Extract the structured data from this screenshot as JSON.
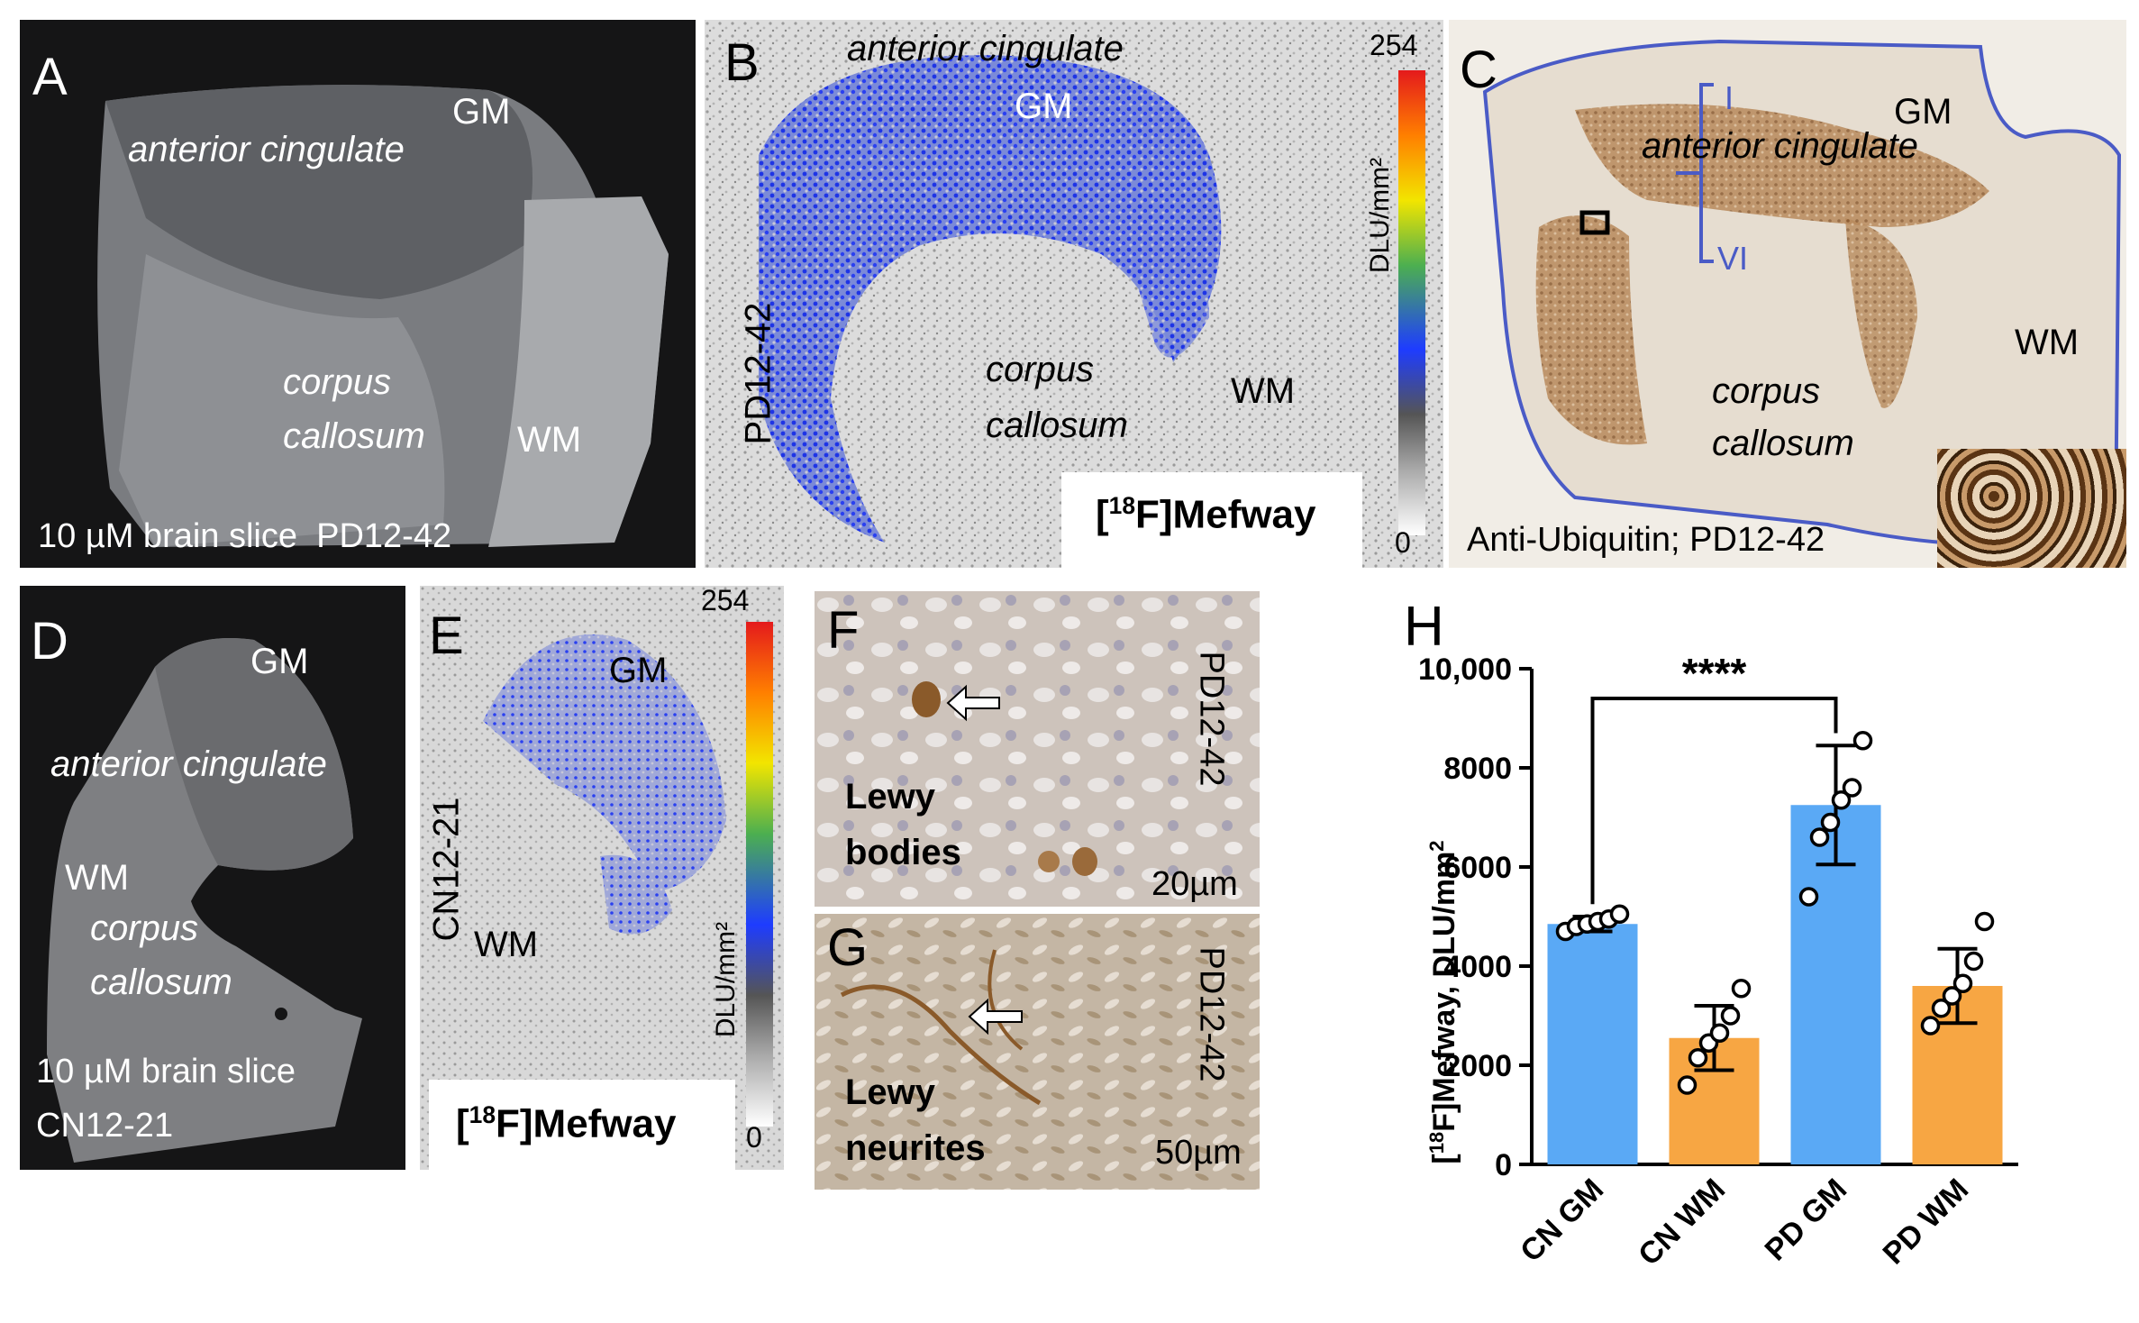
{
  "panels": {
    "A": {
      "label": "A",
      "gm": "GM",
      "region": "anterior cingulate",
      "cc_line1": "corpus",
      "cc_line2": "callosum",
      "wm": "WM",
      "caption": "10 µM brain slice  PD12-42"
    },
    "B": {
      "label": "B",
      "region": "anterior cingulate",
      "gm": "GM",
      "cc_line1": "corpus",
      "cc_line2": "callosum",
      "wm": "WM",
      "sample": "PD12-42",
      "cbar_max": "254",
      "cbar_min": "0",
      "cbar_unit": "DLU/mm²",
      "tracer_iso": "18",
      "tracer_name": "Mefway"
    },
    "C": {
      "label": "C",
      "layer_top": "I",
      "layer_bottom": "VI",
      "gm": "GM",
      "region": "anterior cingulate",
      "cc_line1": "corpus",
      "cc_line2": "callosum",
      "wm": "WM",
      "caption": "Anti-Ubiquitin; PD12-42"
    },
    "D": {
      "label": "D",
      "gm": "GM",
      "region": "anterior cingulate",
      "wm": "WM",
      "cc_line1": "corpus",
      "cc_line2": "callosum",
      "caption_line1": "10 µM brain slice",
      "caption_line2": "CN12-21"
    },
    "E": {
      "label": "E",
      "gm": "GM",
      "wm": "WM",
      "sample": "CN12-21",
      "cbar_max": "254",
      "cbar_min": "0",
      "cbar_unit": "DLU/mm²",
      "tracer_iso": "18",
      "tracer_name": "Mefway"
    },
    "F": {
      "label": "F",
      "line1": "Lewy",
      "line2": "bodies",
      "sample": "PD12-42",
      "scale": "20µm"
    },
    "G": {
      "label": "G",
      "line1": "Lewy",
      "line2": "neurites",
      "sample": "PD12-42",
      "scale": "50µm"
    },
    "H": {
      "label": "H",
      "significance": "****"
    }
  },
  "chart_data": {
    "type": "bar",
    "ylabel_prefix": "[",
    "ylabel_iso": "18",
    "ylabel_rest": "F]Mefway, DLU/mm",
    "ylabel_exp": "2",
    "ylim": [
      0,
      10000
    ],
    "yticks": [
      0,
      2000,
      4000,
      6000,
      8000,
      10000
    ],
    "ytick_labels": [
      "0",
      "2000",
      "4000",
      "6000",
      "8000",
      "10,000"
    ],
    "categories": [
      "CN GM",
      "CN WM",
      "PD GM",
      "PD WM"
    ],
    "values": [
      4850,
      2550,
      7250,
      3600
    ],
    "sd": [
      150,
      650,
      1200,
      750
    ],
    "colors": [
      "#5aa9f5",
      "#f7a643",
      "#5aa9f5",
      "#f7a643"
    ],
    "points": [
      [
        4700,
        4800,
        4850,
        4900,
        4950,
        5050
      ],
      [
        1600,
        2150,
        2450,
        2650,
        3000,
        3550
      ],
      [
        5400,
        6600,
        6900,
        7350,
        7600,
        8550
      ],
      [
        2800,
        3150,
        3400,
        3650,
        4100,
        4900
      ]
    ],
    "comparison": {
      "from": 0,
      "to": 2,
      "label": "****"
    }
  }
}
